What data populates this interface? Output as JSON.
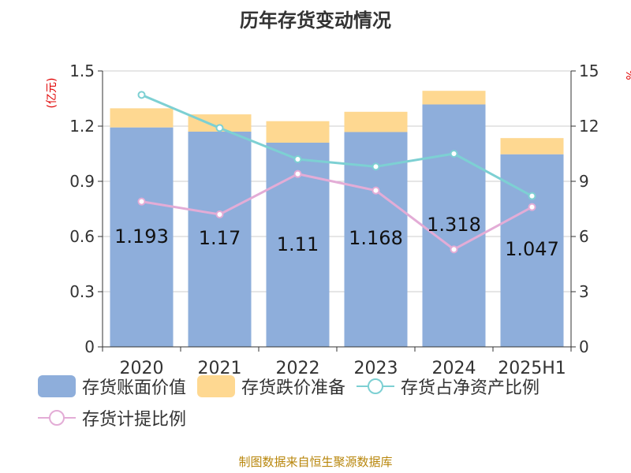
{
  "title": "历年存货变动情况",
  "source": "制图数据来自恒生聚源数据库",
  "colors": {
    "book_value": "#8eaedb",
    "reserve": "#fed891",
    "ratio_net_assets": "#7dd0d3",
    "provision_ratio": "#e3acd6",
    "axis_unit": "#e00000"
  },
  "legend": [
    {
      "label": "存货账面价值",
      "kind": "rect",
      "color": "#8eaedb"
    },
    {
      "label": "存货跌价准备",
      "kind": "rect",
      "color": "#fed891"
    },
    {
      "label": "存货占净资产比例",
      "kind": "line",
      "color": "#7dd0d3"
    },
    {
      "label": "存货计提比例",
      "kind": "line",
      "color": "#e3acd6"
    }
  ],
  "chart_data": {
    "type": "bar",
    "categories": [
      "2020",
      "2021",
      "2022",
      "2023",
      "2024",
      "2025H1"
    ],
    "y_left": {
      "label": "(亿元)",
      "ylim": [
        0,
        1.5
      ],
      "ticks": [
        "0",
        "0.3",
        "0.6",
        "0.9",
        "1.2",
        "1.5"
      ]
    },
    "y_right": {
      "label": "%",
      "ylim": [
        0,
        15
      ],
      "ticks": [
        "0",
        "3",
        "6",
        "9",
        "12",
        "15"
      ]
    },
    "series": [
      {
        "name": "存货账面价值",
        "type": "bar",
        "axis": "left",
        "values": [
          1.193,
          1.17,
          1.11,
          1.168,
          1.318,
          1.047
        ],
        "labels": [
          "1.193",
          "1.17",
          "1.11",
          "1.168",
          "1.318",
          "1.047"
        ]
      },
      {
        "name": "存货跌价准备",
        "type": "bar",
        "stacked": true,
        "axis": "left",
        "values": [
          0.104,
          0.094,
          0.117,
          0.11,
          0.074,
          0.088
        ]
      },
      {
        "name": "存货占净资产比例",
        "type": "line",
        "axis": "right",
        "values": [
          13.7,
          11.9,
          10.2,
          9.8,
          10.5,
          8.2
        ]
      },
      {
        "name": "存货计提比例",
        "type": "line",
        "axis": "right",
        "values": [
          7.9,
          7.2,
          9.4,
          8.5,
          5.3,
          7.6
        ]
      }
    ],
    "grid": true,
    "legend_position": "bottom-left"
  }
}
